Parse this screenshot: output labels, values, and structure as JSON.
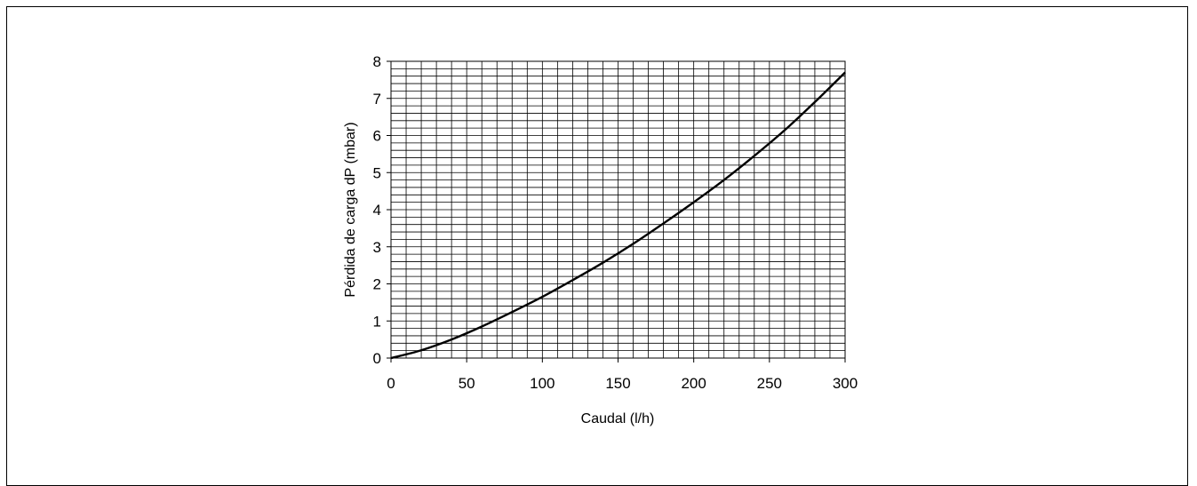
{
  "chart_data": {
    "type": "line",
    "title": "",
    "xlabel": "Caudal (l/h)",
    "ylabel": "Pérdida de carga dP (mbar)",
    "xlim": [
      0,
      300
    ],
    "ylim": [
      0,
      8
    ],
    "xticks": [
      0,
      50,
      100,
      150,
      200,
      250,
      300
    ],
    "yticks": [
      0,
      1,
      2,
      3,
      4,
      5,
      6,
      7,
      8
    ],
    "x_minor_step": 10,
    "y_minor_step": 0.2,
    "grid": true,
    "legend": "none",
    "series": [
      {
        "x": [
          0,
          20,
          40,
          60,
          80,
          100,
          120,
          140,
          160,
          180,
          200,
          220,
          240,
          260,
          280,
          300
        ],
        "y": [
          0,
          0.21,
          0.5,
          0.85,
          1.24,
          1.65,
          2.1,
          2.57,
          3.08,
          3.63,
          4.2,
          4.8,
          5.45,
          6.14,
          6.9,
          7.7
        ],
        "color": "#000000"
      }
    ]
  }
}
